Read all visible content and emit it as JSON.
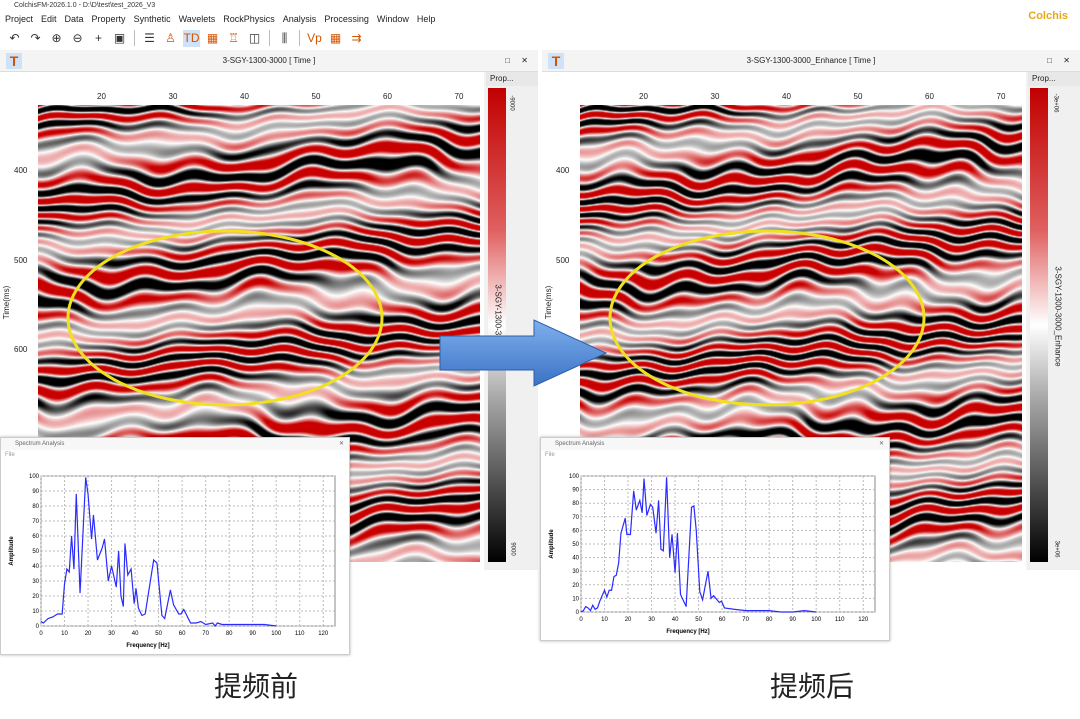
{
  "app": {
    "title": "ColchisFM-2026.1.0 - D:\\D\\test\\test_2026_V3",
    "brand": "Colchis"
  },
  "menu": [
    "Project",
    "Edit",
    "Data",
    "Property",
    "Synthetic",
    "Wavelets",
    "RockPhysics",
    "Analysis",
    "Processing",
    "Window",
    "Help"
  ],
  "toolbar_icons": [
    "undo-icon",
    "redo-icon",
    "zoom-in-icon",
    "zoom-out-icon",
    "crosshair-icon",
    "screenshot-icon",
    "seismic-list-icon",
    "well-icon",
    "td-4000-icon",
    "td-grid-icon",
    "td-well-icon",
    "panel-add-icon",
    "panel-split-icon",
    "vp-tool-icon",
    "grid-color-icon",
    "td-arrows-icon"
  ],
  "left": {
    "title": "3-SGY-1300-3000 [ Time ]",
    "prop": "Prop...",
    "cbar_label": "3-SGY-1300-3000",
    "cbar_min": "-9000",
    "cbar_max": "9000",
    "caption": "提频前"
  },
  "right": {
    "title": "3-SGY-1300-3000_Enhance [ Time ]",
    "prop": "Prop...",
    "cbar_label": "3-SGY-1300-3000_Enhance",
    "cbar_min": "-3e+06",
    "cbar_max": "3e+06",
    "caption": "提频后"
  },
  "axes": {
    "x_ticks": [
      "20",
      "30",
      "40",
      "50",
      "60",
      "70"
    ],
    "y_ticks": [
      "400",
      "500",
      "600"
    ],
    "y_label": "Time(ms)"
  },
  "colors": {
    "red": "#c00000",
    "black": "#000000",
    "highlight": "#f0e020",
    "arrow": "#4a86d8"
  },
  "spectrum_window": {
    "title": "Spectrum Analysis",
    "menu": "File"
  },
  "chart_data": [
    {
      "type": "line",
      "xlabel": "Frequency [Hz]",
      "ylabel": "Amplitude",
      "xlim": [
        0,
        125
      ],
      "ylim": [
        0,
        100
      ],
      "x_ticks": [
        0,
        10,
        20,
        30,
        40,
        50,
        60,
        70,
        80,
        90,
        100,
        110,
        120
      ],
      "y_ticks": [
        0,
        10,
        20,
        30,
        40,
        50,
        60,
        70,
        80,
        90,
        100
      ],
      "grid": true,
      "points": [
        [
          0,
          3
        ],
        [
          1,
          2
        ],
        [
          3,
          5
        ],
        [
          5,
          6
        ],
        [
          7,
          8
        ],
        [
          9,
          8
        ],
        [
          10,
          28
        ],
        [
          11,
          38
        ],
        [
          12,
          36
        ],
        [
          13,
          60
        ],
        [
          14,
          38
        ],
        [
          15,
          88
        ],
        [
          16.6,
          22
        ],
        [
          19,
          99
        ],
        [
          20,
          88
        ],
        [
          21,
          68
        ],
        [
          21.5,
          58
        ],
        [
          22.3,
          74
        ],
        [
          24,
          44
        ],
        [
          25,
          48
        ],
        [
          26,
          52
        ],
        [
          27,
          58
        ],
        [
          28.6,
          30
        ],
        [
          30,
          40
        ],
        [
          32,
          26
        ],
        [
          33,
          50
        ],
        [
          34,
          20
        ],
        [
          35,
          13
        ],
        [
          35.7,
          55
        ],
        [
          36.9,
          34
        ],
        [
          38.3,
          38
        ],
        [
          39.6,
          15
        ],
        [
          40.4,
          25
        ],
        [
          41.4,
          12
        ],
        [
          42.9,
          7
        ],
        [
          44.3,
          8
        ],
        [
          47.9,
          44
        ],
        [
          49.3,
          42
        ],
        [
          51.4,
          7
        ],
        [
          52.6,
          5
        ],
        [
          55,
          24
        ],
        [
          56.4,
          14
        ],
        [
          58.6,
          8
        ],
        [
          59.5,
          8
        ],
        [
          60.7,
          11
        ],
        [
          63.6,
          2
        ],
        [
          66,
          2
        ],
        [
          68,
          3
        ],
        [
          70,
          1
        ],
        [
          73,
          2
        ],
        [
          74,
          0
        ],
        [
          75,
          2
        ],
        [
          77,
          1
        ],
        [
          80,
          1
        ],
        [
          85,
          1
        ],
        [
          90,
          1
        ],
        [
          95,
          1
        ],
        [
          100,
          0
        ]
      ]
    },
    {
      "type": "line",
      "xlabel": "Frequency [Hz]",
      "ylabel": "Amplitude",
      "xlim": [
        0,
        125
      ],
      "ylim": [
        0,
        100
      ],
      "x_ticks": [
        0,
        10,
        20,
        30,
        40,
        50,
        60,
        70,
        80,
        90,
        100,
        110,
        120
      ],
      "y_ticks": [
        0,
        10,
        20,
        30,
        40,
        50,
        60,
        70,
        80,
        90,
        100
      ],
      "grid": true,
      "points": [
        [
          0,
          0
        ],
        [
          1,
          1
        ],
        [
          2,
          4
        ],
        [
          3,
          3
        ],
        [
          4,
          1
        ],
        [
          5,
          5
        ],
        [
          6,
          2
        ],
        [
          7,
          3
        ],
        [
          8,
          8
        ],
        [
          10,
          16
        ],
        [
          11,
          11
        ],
        [
          12,
          16
        ],
        [
          13,
          16
        ],
        [
          14,
          26
        ],
        [
          15,
          27
        ],
        [
          16,
          36
        ],
        [
          17,
          58
        ],
        [
          18.8,
          69
        ],
        [
          19.5,
          57
        ],
        [
          21,
          57
        ],
        [
          22.4,
          89
        ],
        [
          23.5,
          75
        ],
        [
          25,
          82
        ],
        [
          26,
          73
        ],
        [
          26.8,
          98
        ],
        [
          28,
          71
        ],
        [
          29.5,
          79
        ],
        [
          30.5,
          77
        ],
        [
          31.9,
          58
        ],
        [
          33,
          82
        ],
        [
          34,
          46
        ],
        [
          35,
          45
        ],
        [
          36.4,
          99
        ],
        [
          37.7,
          40
        ],
        [
          38.7,
          57
        ],
        [
          40,
          29
        ],
        [
          41,
          58
        ],
        [
          42.3,
          13
        ],
        [
          44.7,
          4
        ],
        [
          47,
          77
        ],
        [
          48,
          78
        ],
        [
          49,
          60
        ],
        [
          50.5,
          15
        ],
        [
          51.7,
          9
        ],
        [
          54,
          30
        ],
        [
          55.3,
          10
        ],
        [
          56.4,
          12
        ],
        [
          58.8,
          7
        ],
        [
          59.7,
          8
        ],
        [
          61,
          3
        ],
        [
          65,
          2
        ],
        [
          70,
          1
        ],
        [
          73,
          1
        ],
        [
          75,
          1
        ],
        [
          80,
          1
        ],
        [
          85,
          0
        ],
        [
          90,
          0
        ],
        [
          95,
          1
        ],
        [
          100,
          0
        ]
      ]
    }
  ]
}
